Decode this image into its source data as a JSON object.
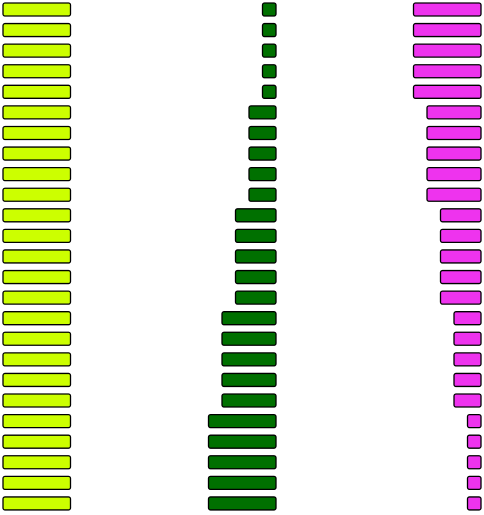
{
  "chart_data": {
    "type": "bar",
    "categories": [
      null,
      null,
      null,
      null,
      null,
      null,
      null,
      null,
      null,
      null,
      null,
      null,
      null,
      null,
      null,
      null,
      null,
      null,
      null,
      null,
      null,
      null,
      null,
      null,
      null
    ],
    "series": [
      {
        "color": "#ccff00",
        "values": [
          5,
          5,
          5,
          5,
          5,
          5,
          5,
          5,
          5,
          5,
          5,
          5,
          5,
          5,
          5,
          5,
          5,
          5,
          5,
          5,
          5,
          5,
          5,
          5,
          5
        ]
      },
      {
        "color": "#007000",
        "values": [
          1,
          1,
          1,
          1,
          1,
          2,
          2,
          2,
          2,
          2,
          3,
          3,
          3,
          3,
          3,
          4,
          4,
          4,
          4,
          4,
          5,
          5,
          5,
          5,
          5
        ]
      },
      {
        "color": "#ee33ee",
        "values": [
          5,
          5,
          5,
          5,
          5,
          4,
          4,
          4,
          4,
          4,
          3,
          3,
          3,
          3,
          3,
          2,
          2,
          2,
          2,
          2,
          1,
          1,
          1,
          1,
          1
        ]
      }
    ]
  }
}
